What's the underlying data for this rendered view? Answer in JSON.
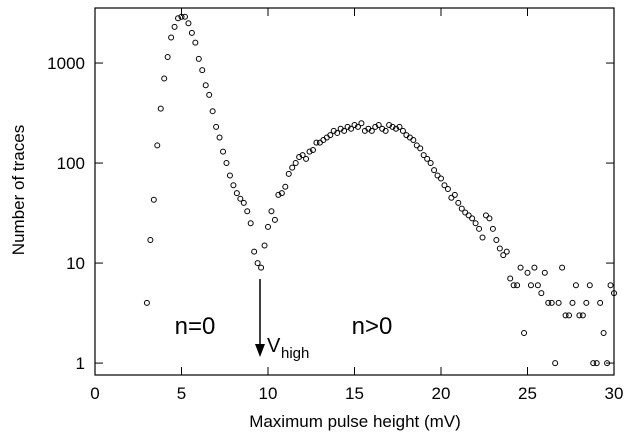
{
  "chart_data": {
    "type": "scatter",
    "xlabel": "Maximum pulse height (mV)",
    "ylabel": "Number of traces",
    "xlim": [
      0,
      30
    ],
    "xticks": [
      0,
      5,
      10,
      15,
      20,
      25,
      30
    ],
    "ylim": [
      0.76,
      3550
    ],
    "yscale": "log",
    "yticks": [
      1,
      10,
      100,
      1000
    ],
    "annotations": [
      "n=0",
      "n>0"
    ],
    "marker_label": {
      "text": "V",
      "subscript": "high"
    },
    "x": [
      3.0,
      3.2,
      3.4,
      3.6,
      3.8,
      4.0,
      4.2,
      4.4,
      4.6,
      4.8,
      5.0,
      5.2,
      5.4,
      5.6,
      5.8,
      6.0,
      6.2,
      6.4,
      6.6,
      6.8,
      7.0,
      7.2,
      7.4,
      7.6,
      7.8,
      8.0,
      8.2,
      8.4,
      8.6,
      8.8,
      9.0,
      9.2,
      9.4,
      9.6,
      9.8,
      10.0,
      10.2,
      10.4,
      10.6,
      10.8,
      11.0,
      11.2,
      11.4,
      11.6,
      11.8,
      12.0,
      12.2,
      12.4,
      12.6,
      12.8,
      13.0,
      13.2,
      13.4,
      13.6,
      13.8,
      14.0,
      14.2,
      14.4,
      14.6,
      14.8,
      15.0,
      15.2,
      15.4,
      15.6,
      15.8,
      16.0,
      16.2,
      16.4,
      16.6,
      16.8,
      17.0,
      17.2,
      17.4,
      17.6,
      17.8,
      18.0,
      18.2,
      18.4,
      18.6,
      18.8,
      19.0,
      19.2,
      19.4,
      19.6,
      19.8,
      20.0,
      20.2,
      20.4,
      20.6,
      20.8,
      21.0,
      21.2,
      21.4,
      21.6,
      21.8,
      22.0,
      22.2,
      22.4,
      22.6,
      22.8,
      23.0,
      23.2,
      23.4,
      23.6,
      23.8,
      24.0,
      24.2,
      24.4,
      24.6,
      24.8,
      25.0,
      25.2,
      25.4,
      25.6,
      25.8,
      26.0,
      26.2,
      26.4,
      26.6,
      26.8,
      27.0,
      27.2,
      27.4,
      27.6,
      27.8,
      28.0,
      28.2,
      28.4,
      28.6,
      28.8,
      29.0,
      29.2,
      29.4,
      29.6,
      29.8,
      30.0
    ],
    "series": [
      {
        "color": "#000000",
        "values": [
          4,
          17,
          43,
          150,
          350,
          700,
          1150,
          1800,
          2300,
          2800,
          2900,
          2900,
          2500,
          2000,
          1600,
          1100,
          850,
          600,
          480,
          330,
          230,
          180,
          130,
          100,
          75,
          60,
          50,
          44,
          40,
          33,
          25,
          13,
          10,
          9,
          15,
          23,
          33,
          27,
          48,
          50,
          58,
          78,
          90,
          100,
          115,
          120,
          110,
          130,
          135,
          160,
          160,
          170,
          180,
          190,
          210,
          200,
          220,
          210,
          230,
          220,
          240,
          230,
          250,
          210,
          220,
          210,
          230,
          240,
          220,
          210,
          240,
          230,
          220,
          230,
          210,
          190,
          180,
          170,
          150,
          140,
          120,
          110,
          100,
          85,
          75,
          70,
          60,
          55,
          45,
          48,
          40,
          35,
          32,
          30,
          28,
          25,
          22,
          18,
          30,
          28,
          22,
          17,
          14,
          12,
          13,
          7,
          6,
          6,
          9,
          2,
          8,
          6,
          9,
          6,
          5,
          8,
          4,
          4,
          1,
          4,
          9,
          3,
          3,
          4,
          6,
          3,
          3,
          4,
          6,
          1,
          1,
          4,
          2,
          1,
          6,
          5
        ]
      }
    ]
  }
}
